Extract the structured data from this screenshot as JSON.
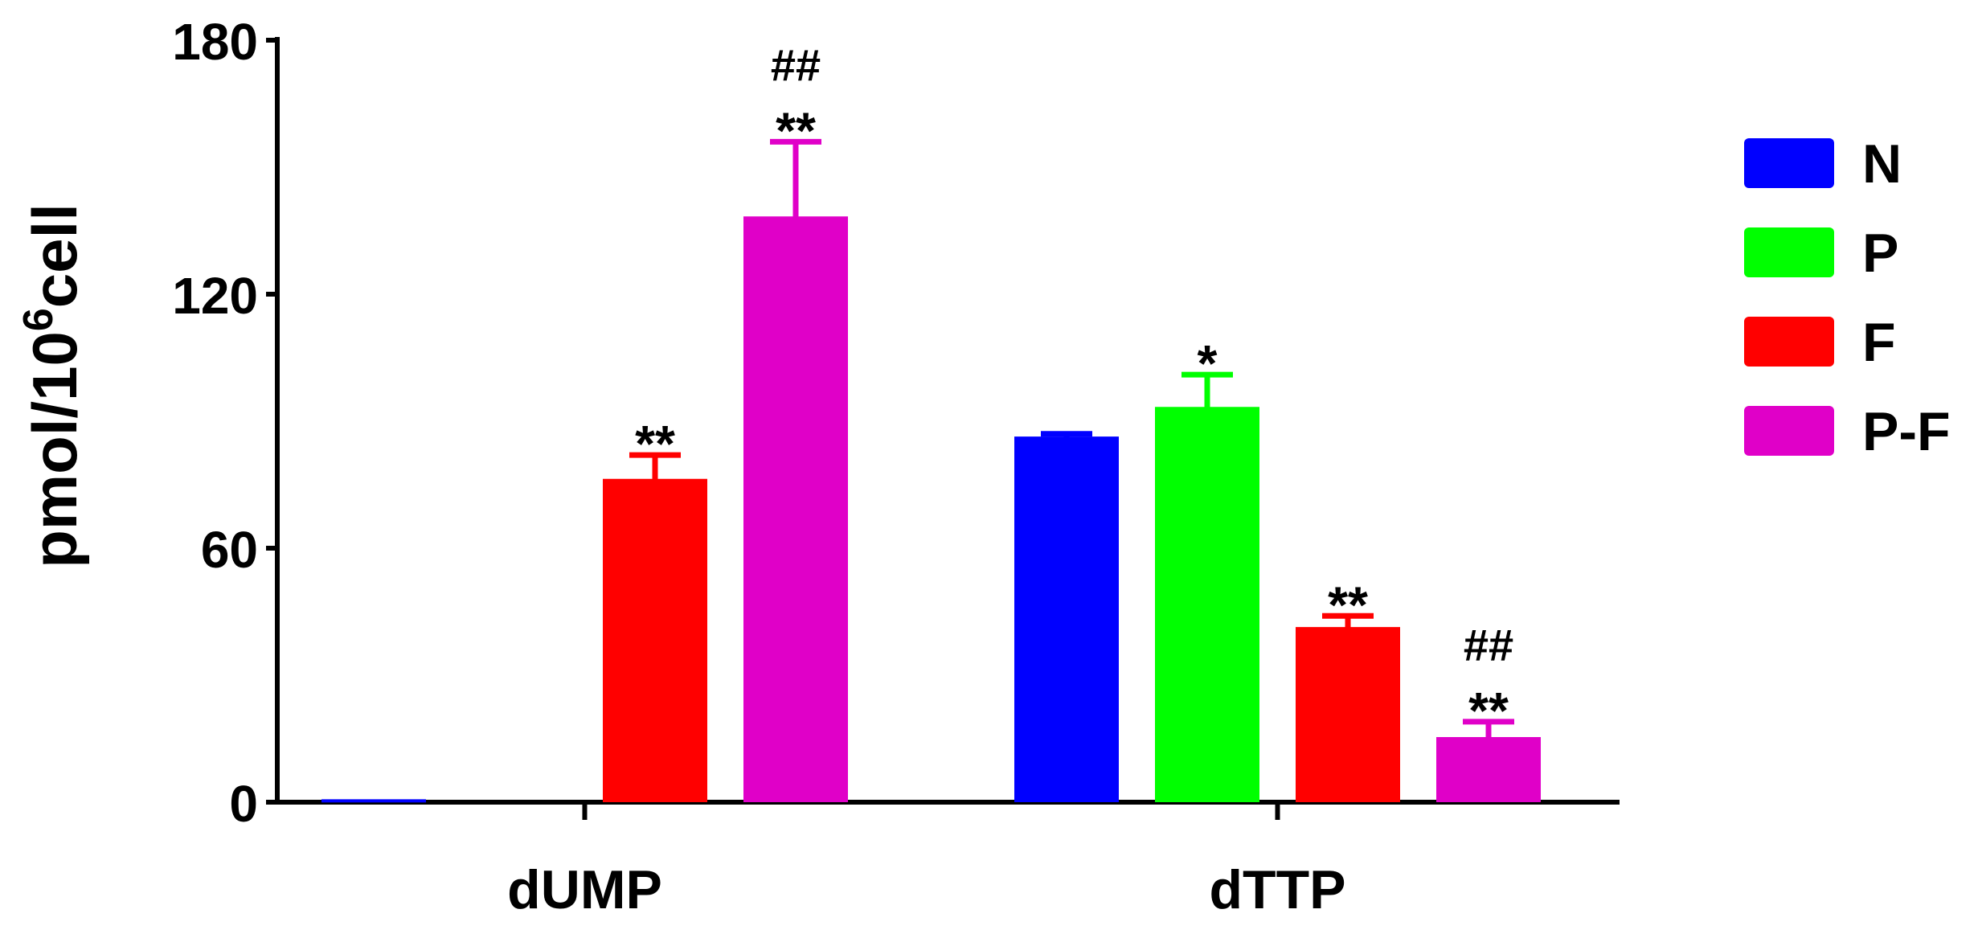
{
  "chart_data": {
    "type": "bar",
    "title": "",
    "xlabel": "",
    "ylabel": {
      "base": "pmol/10",
      "sup": "6",
      "suffix": "cell"
    },
    "ylim": [
      0,
      180
    ],
    "yticks": [
      "0",
      "60",
      "120",
      "180"
    ],
    "grid": false,
    "legend_position": "right",
    "categories": [
      "dUMP",
      "dTTP"
    ],
    "series": [
      {
        "name": "N",
        "color": "#0000ff",
        "values": [
          0.3,
          86
        ],
        "errors": [
          0,
          1
        ],
        "annotations": [
          "",
          ""
        ]
      },
      {
        "name": "P",
        "color": "#00ff00",
        "values": [
          0,
          93
        ],
        "errors": [
          0,
          8
        ],
        "annotations": [
          "",
          "*"
        ]
      },
      {
        "name": "F",
        "color": "#ff0000",
        "values": [
          76,
          41
        ],
        "errors": [
          6,
          3
        ],
        "annotations": [
          "**",
          "**"
        ]
      },
      {
        "name": "P-F",
        "color": "#e000c8",
        "values": [
          138,
          15
        ],
        "errors": [
          18,
          4
        ],
        "annotations": [
          "##\n**",
          "##\n**"
        ]
      }
    ]
  }
}
